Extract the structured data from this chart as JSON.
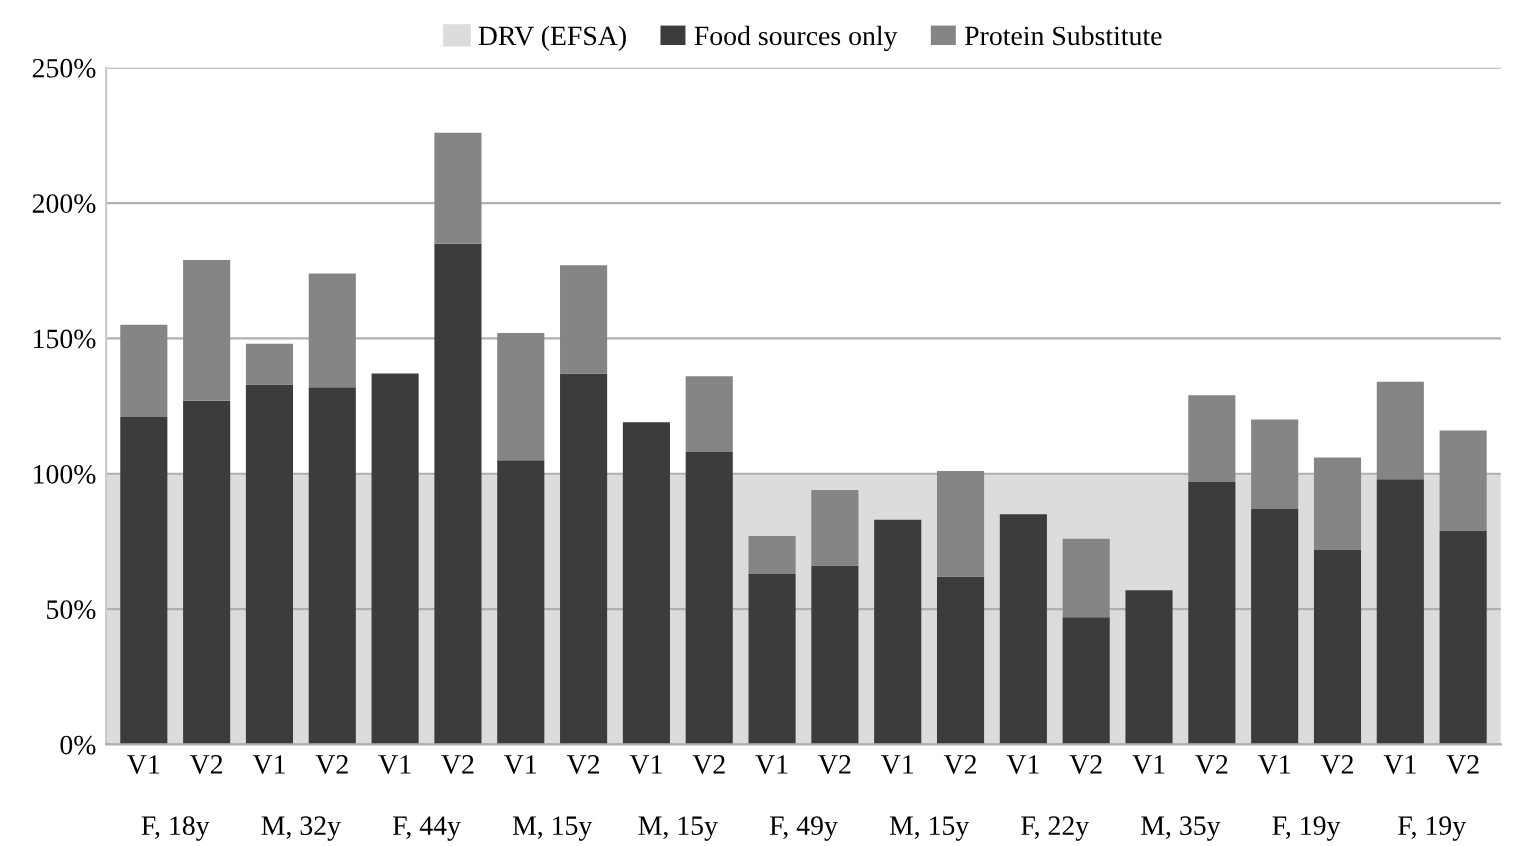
{
  "chart_data": {
    "type": "bar",
    "stacked": true,
    "categories": [
      "V1",
      "V2",
      "V1",
      "V2",
      "V1",
      "V2",
      "V1",
      "V2",
      "V1",
      "V2",
      "V1",
      "V2",
      "V1",
      "V2",
      "V1",
      "V2",
      "V1",
      "V2",
      "V1",
      "V2",
      "V1",
      "V2"
    ],
    "series": [
      {
        "name": "Food sources only",
        "color": "#3c3c3c",
        "values": [
          121,
          127,
          133,
          132,
          137,
          185,
          105,
          137,
          119,
          108,
          63,
          66,
          83,
          62,
          85,
          47,
          57,
          97,
          87,
          72,
          98,
          79
        ]
      },
      {
        "name": "Protein Substitute",
        "color": "#858585",
        "values": [
          34,
          52,
          15,
          42,
          0,
          41,
          47,
          40,
          0,
          28,
          14,
          28,
          0,
          39,
          0,
          29,
          0,
          32,
          33,
          34,
          36,
          37
        ]
      }
    ],
    "bands": [
      {
        "axis": "y",
        "from": 0,
        "to": 100,
        "label": "DRV (EFSA)",
        "color": "#dcdcdc"
      }
    ],
    "annotations": [
      "F, 18y",
      "M, 32y",
      "F, 44y",
      "M, 15y",
      "M, 15y",
      "F, 49y",
      "M, 15y",
      "F, 22y",
      "M, 35y",
      "F, 19y",
      "F, 19y"
    ],
    "ylim": [
      0,
      250
    ],
    "yticks": [
      {
        "value": 0,
        "label": "0%"
      },
      {
        "value": 50,
        "label": "50%"
      },
      {
        "value": 100,
        "label": "100%"
      },
      {
        "value": 150,
        "label": "150%"
      },
      {
        "value": 200,
        "label": "200%"
      },
      {
        "value": 250,
        "label": "250%"
      }
    ],
    "grid": "y",
    "legend": "top"
  }
}
